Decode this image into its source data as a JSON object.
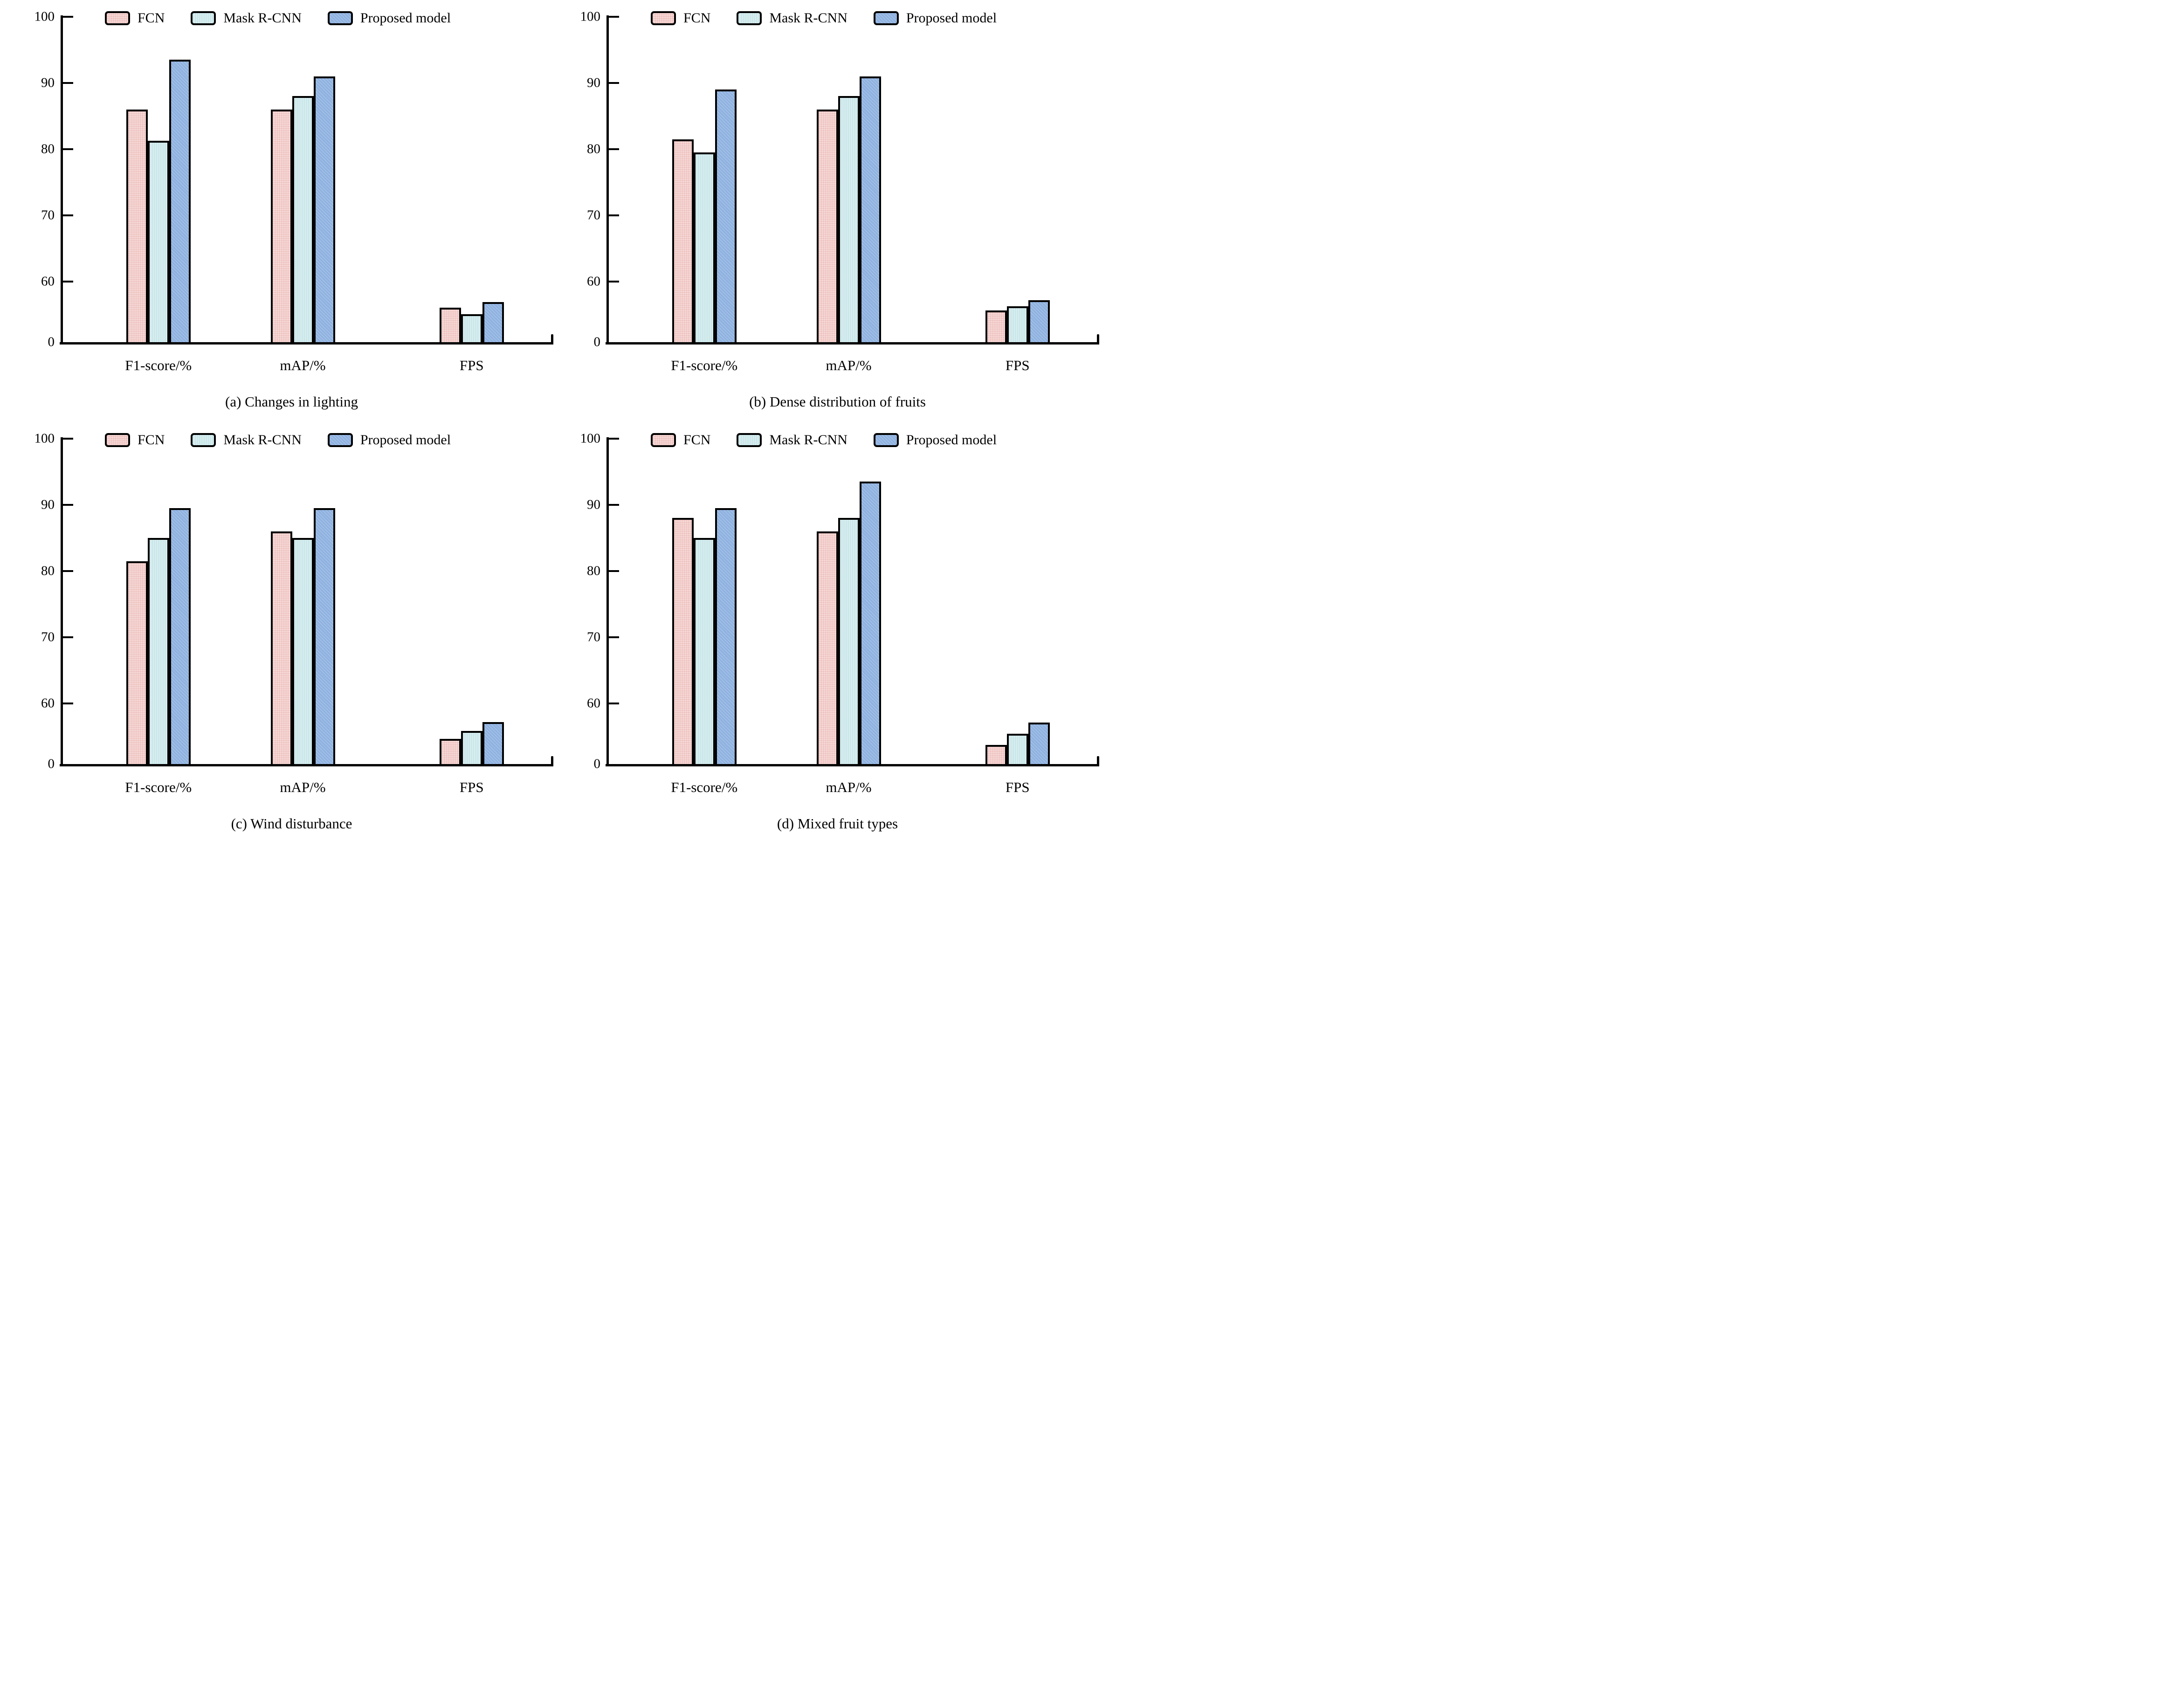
{
  "legend": {
    "items": [
      {
        "label": "FCN",
        "color": "#eec1be",
        "key": "fcn"
      },
      {
        "label": "Mask R-CNN",
        "color": "#c9e6e9",
        "key": "mask"
      },
      {
        "label": "Proposed model",
        "color": "#8fb2e0",
        "key": "prop"
      }
    ]
  },
  "axis": {
    "y_ticks": [
      0,
      60,
      70,
      80,
      90,
      100
    ],
    "broken_axis_note": "y axis compressed between 0 and 60",
    "categories": [
      "F1-score/%",
      "mAP/%",
      "FPS"
    ],
    "category_keys": [
      "f1-score",
      "map",
      "fps"
    ]
  },
  "colors": {
    "bar_border": "#000000",
    "axis": "#000000",
    "background": "#ffffff"
  },
  "chart_data": [
    {
      "type": "bar",
      "caption": "(a) Changes in lighting",
      "categories": [
        "F1-score/%",
        "mAP/%",
        "FPS"
      ],
      "series": [
        {
          "name": "FCN",
          "values": [
            86,
            86,
            34
          ]
        },
        {
          "name": "Mask R-CNN",
          "values": [
            81.3,
            88,
            27.5
          ]
        },
        {
          "name": "Proposed model",
          "values": [
            93.5,
            91,
            39.5
          ]
        }
      ],
      "ylim": [
        0,
        100
      ],
      "legend_position": "top",
      "grid": false
    },
    {
      "type": "bar",
      "caption": "(b) Dense distribution of fruits",
      "categories": [
        "F1-score/%",
        "mAP/%",
        "FPS"
      ],
      "series": [
        {
          "name": "FCN",
          "values": [
            81.5,
            86,
            31.5
          ]
        },
        {
          "name": "Mask R-CNN",
          "values": [
            79.5,
            88,
            35.5
          ]
        },
        {
          "name": "Proposed model",
          "values": [
            89,
            91,
            41.5
          ]
        }
      ],
      "ylim": [
        0,
        100
      ],
      "legend_position": "top",
      "grid": false
    },
    {
      "type": "bar",
      "caption": "(c) Wind disturbance",
      "categories": [
        "F1-score/%",
        "mAP/%",
        "FPS"
      ],
      "series": [
        {
          "name": "FCN",
          "values": [
            81.5,
            86,
            25
          ]
        },
        {
          "name": "Mask R-CNN",
          "values": [
            85,
            85,
            33
          ]
        },
        {
          "name": "Proposed model",
          "values": [
            89.5,
            89.5,
            41.5
          ]
        }
      ],
      "ylim": [
        0,
        100
      ],
      "legend_position": "top",
      "grid": false
    },
    {
      "type": "bar",
      "caption": "(d) Mixed fruit types",
      "categories": [
        "F1-score/%",
        "mAP/%",
        "FPS"
      ],
      "series": [
        {
          "name": "FCN",
          "values": [
            88,
            86,
            19
          ]
        },
        {
          "name": "Mask R-CNN",
          "values": [
            85,
            88,
            30
          ]
        },
        {
          "name": "Proposed model",
          "values": [
            89.5,
            93.5,
            41
          ]
        }
      ],
      "ylim": [
        0,
        100
      ],
      "legend_position": "top",
      "grid": false
    }
  ]
}
